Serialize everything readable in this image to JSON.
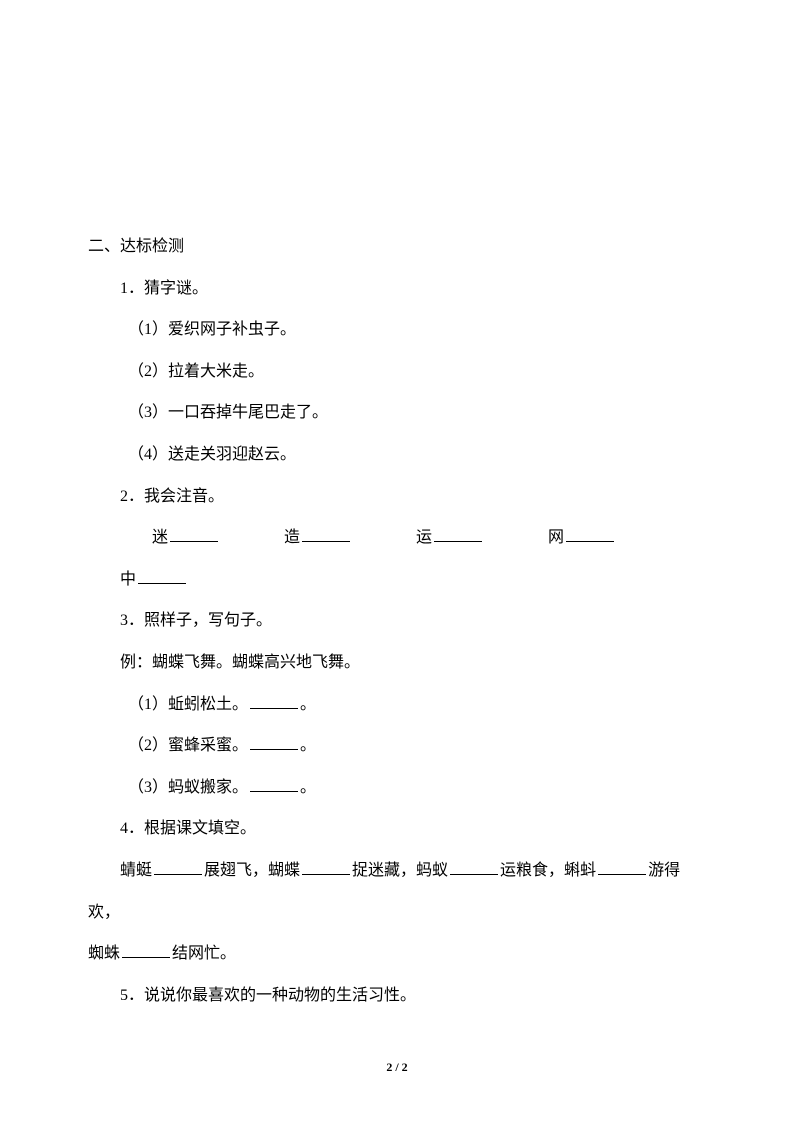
{
  "section_title": "二、达标检测",
  "q1": {
    "title": "1．猜字谜。",
    "items": [
      "（1）爱织网子补虫子。",
      "（2）拉着大米走。",
      "（3）一口吞掉牛尾巴走了。",
      "（4）送走关羽迎赵云。"
    ]
  },
  "q2": {
    "title": "2．我会注音。",
    "chars": [
      "迷",
      "造",
      "运",
      "网",
      "中"
    ]
  },
  "q3": {
    "title": "3．照样子，写句子。",
    "example": "例：蝴蝶飞舞。蝴蝶高兴地飞舞。",
    "items": [
      "（1）蚯蚓松土。",
      "（2）蜜蜂采蜜。",
      "（3）蚂蚁搬家。"
    ],
    "suffix": "。"
  },
  "q4": {
    "title": "4．根据课文填空。",
    "parts": [
      "蜻蜓",
      "展翅飞，蝴蝶",
      "捉迷藏，蚂蚁",
      "运粮食，蝌蚪",
      "游得欢，",
      "蜘蛛",
      "结网忙。"
    ]
  },
  "q5": {
    "title": "5．说说你最喜欢的一种动物的生活习性。"
  },
  "footer": {
    "current": "2",
    "sep": " / ",
    "total": "2"
  }
}
